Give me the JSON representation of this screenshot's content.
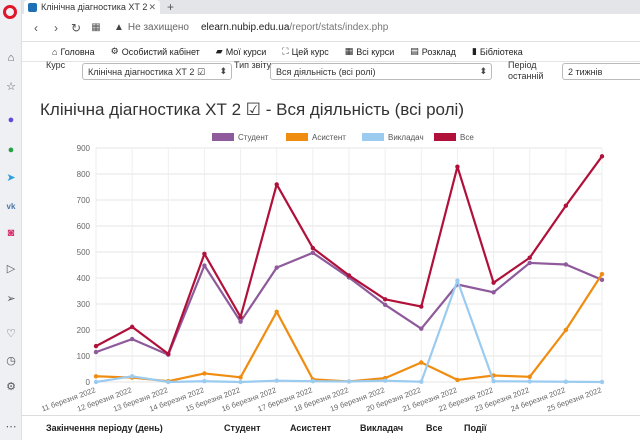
{
  "browser": {
    "tab_title": "Клінічна діагностика ХТ 2",
    "insecure_text": "Не захищено",
    "url_host": "elearn.nubip.edu.ua",
    "url_path": "/report/stats/index.php"
  },
  "nav": {
    "items": [
      {
        "icon": "home-icon",
        "glyph": "⌂",
        "label": "Головна"
      },
      {
        "icon": "dashboard-icon",
        "glyph": "⚙",
        "label": "Особистий кабінет"
      },
      {
        "icon": "folder-icon",
        "glyph": "▰",
        "label": "Мої курси"
      },
      {
        "icon": "sitemap-icon",
        "glyph": "⛶",
        "label": "Цей курс"
      },
      {
        "icon": "grid-icon",
        "glyph": "▦",
        "label": "Всі курси"
      },
      {
        "icon": "calendar-icon",
        "glyph": "▤",
        "label": "Розклад"
      },
      {
        "icon": "book-icon",
        "glyph": "▮",
        "label": "Бібліотека"
      }
    ]
  },
  "filters": {
    "course_label": "Курс",
    "course_value": "Клінічна діагностика ХТ 2 ☑",
    "report_type_label": "Тип звіту",
    "report_type_value": "Вся діяльність (всі ролі)",
    "period_label": "Період останній",
    "period_value": "2 тижнів"
  },
  "page_title": "Клінічна діагностика ХТ 2 ☑ - Вся діяльність (всі ролі)",
  "chart_data": {
    "type": "line",
    "categories": [
      "11 березня 2022",
      "12 березня 2022",
      "13 березня 2022",
      "14 березня 2022",
      "15 березня 2022",
      "16 березня 2022",
      "17 березня 2022",
      "18 березня 2022",
      "19 березня 2022",
      "20 березня 2022",
      "21 березня 2022",
      "22 березня 2022",
      "23 березня 2022",
      "24 березня 2022",
      "25 березня 2022"
    ],
    "ylim": [
      0,
      900
    ],
    "yticks": [
      0,
      100,
      200,
      300,
      400,
      500,
      600,
      700,
      800,
      900
    ],
    "grid": true,
    "legend": "top",
    "series": [
      {
        "name": "Студент",
        "color": "#8e5a9b",
        "values": [
          115,
          165,
          105,
          448,
          232,
          440,
          497,
          402,
          297,
          205,
          375,
          345,
          458,
          452,
          393
        ]
      },
      {
        "name": "Асистент",
        "color": "#f08c10",
        "values": [
          22,
          17,
          3,
          33,
          18,
          270,
          10,
          2,
          15,
          75,
          8,
          25,
          20,
          200,
          415
        ]
      },
      {
        "name": "Викладач",
        "color": "#9ccbf0",
        "values": [
          0,
          22,
          0,
          3,
          0,
          5,
          3,
          2,
          5,
          1,
          390,
          3,
          2,
          1,
          0
        ]
      },
      {
        "name": "Все",
        "color": "#b0103a",
        "values": [
          138,
          212,
          108,
          493,
          250,
          760,
          515,
          410,
          318,
          290,
          828,
          382,
          478,
          678,
          868
        ]
      }
    ]
  },
  "table": {
    "headers": [
      "Закінчення періоду (день)",
      "Студент",
      "Асистент",
      "Викладач",
      "Все",
      "Події"
    ]
  },
  "colors": {
    "opera_red": "#e0162b",
    "text": "#333333"
  }
}
